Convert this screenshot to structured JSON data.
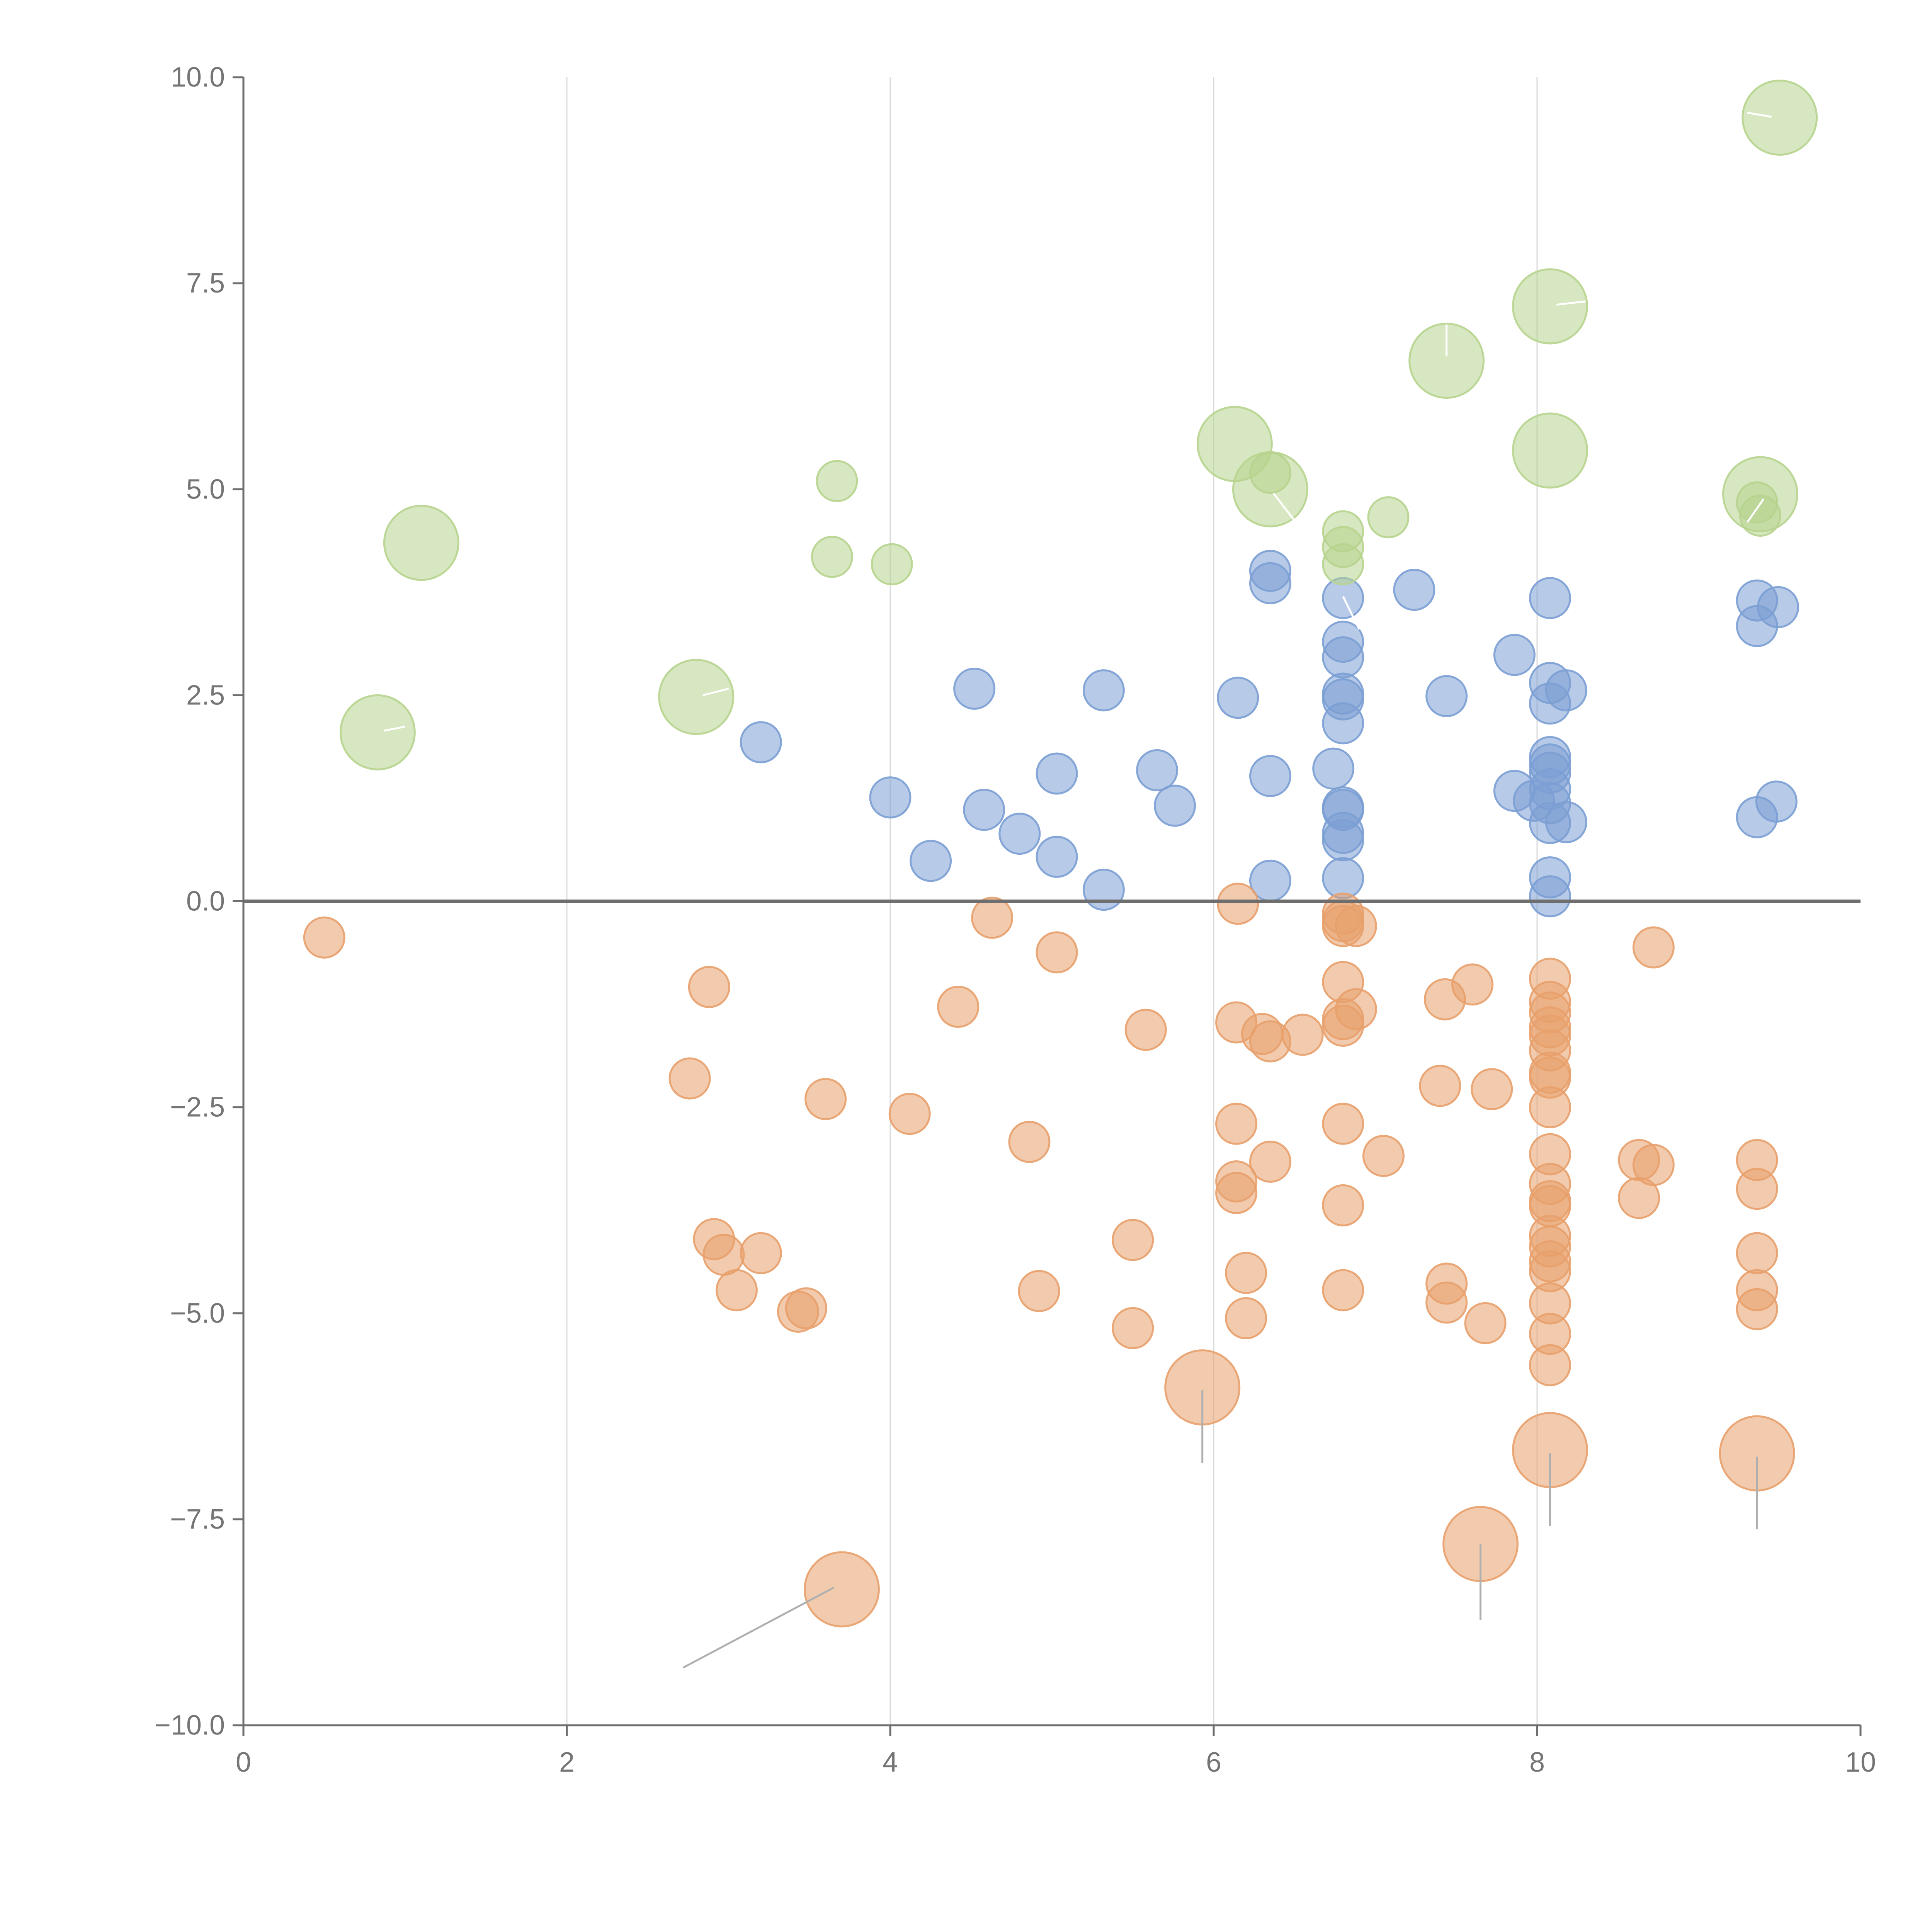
{
  "chart_data": {
    "type": "scatter",
    "title": "",
    "xlabel": "",
    "ylabel": "",
    "xlim": [
      0,
      10
    ],
    "ylim": [
      -10,
      10
    ],
    "xticks": [
      "0",
      "2",
      "4",
      "6",
      "8",
      "10"
    ],
    "xtick_values": [
      0,
      2,
      4,
      6,
      8,
      10
    ],
    "yticks": [
      "10.0",
      "7.5",
      "5.0",
      "2.5",
      "0.0",
      "−2.5",
      "−5.0",
      "−7.5",
      "−10.0"
    ],
    "ytick_values": [
      10,
      7.5,
      5,
      2.5,
      0,
      -2.5,
      -5,
      -7.5,
      -10
    ],
    "vertical_gridlines": [
      2,
      4,
      6,
      8
    ],
    "zero_line": 0,
    "colors": {
      "blue": "#7b9fd4",
      "orange": "#e8a06b",
      "green": "#b7d48e",
      "axis": "#6e6e6e",
      "grid": "#d9d9d9",
      "tick_text": "#757575",
      "leader_line": "#b0b0b0",
      "leader_line_light": "#ffffff"
    },
    "series": [
      {
        "name": "blue",
        "color": "#7b9fd4",
        "size": 1,
        "points": [
          [
            3.2,
            1.93
          ],
          [
            4.0,
            1.26
          ],
          [
            4.25,
            0.49
          ],
          [
            4.52,
            2.58
          ],
          [
            4.58,
            1.11
          ],
          [
            4.8,
            0.82
          ],
          [
            5.03,
            1.55
          ],
          [
            5.03,
            0.54
          ],
          [
            5.32,
            2.56
          ],
          [
            5.32,
            0.14
          ],
          [
            5.65,
            1.59
          ],
          [
            5.76,
            1.16
          ],
          [
            6.15,
            2.47
          ],
          [
            6.35,
            4.01
          ],
          [
            6.35,
            3.86
          ],
          [
            6.35,
            1.52
          ],
          [
            6.35,
            0.25
          ],
          [
            6.8,
            3.68
          ],
          [
            6.8,
            3.15
          ],
          [
            6.8,
            2.96
          ],
          [
            6.8,
            2.52
          ],
          [
            6.8,
            2.45
          ],
          [
            6.8,
            2.16
          ],
          [
            6.74,
            1.61
          ],
          [
            6.8,
            1.14
          ],
          [
            6.8,
            1.11
          ],
          [
            6.8,
            0.83
          ],
          [
            6.8,
            0.74
          ],
          [
            6.8,
            0.28
          ],
          [
            7.24,
            3.78
          ],
          [
            7.44,
            2.49
          ],
          [
            7.86,
            2.99
          ],
          [
            7.86,
            1.34
          ],
          [
            7.98,
            1.22
          ],
          [
            8.08,
            3.68
          ],
          [
            8.08,
            2.65
          ],
          [
            8.08,
            2.4
          ],
          [
            8.18,
            2.56
          ],
          [
            8.08,
            1.75
          ],
          [
            8.08,
            1.66
          ],
          [
            8.08,
            1.56
          ],
          [
            8.08,
            1.36
          ],
          [
            8.08,
            1.19
          ],
          [
            8.08,
            0.95
          ],
          [
            8.18,
            0.96
          ],
          [
            8.08,
            0.29
          ],
          [
            8.08,
            0.06
          ],
          [
            9.36,
            3.65
          ],
          [
            9.49,
            3.57
          ],
          [
            9.36,
            3.34
          ],
          [
            9.48,
            1.21
          ],
          [
            9.36,
            1.02
          ]
        ]
      },
      {
        "name": "orange",
        "color": "#e8a06b",
        "size": 1,
        "points": [
          [
            0.5,
            -0.44
          ],
          [
            2.76,
            -2.15
          ],
          [
            2.88,
            -1.04
          ],
          [
            2.91,
            -4.1
          ],
          [
            2.97,
            -4.29
          ],
          [
            3.05,
            -4.72
          ],
          [
            3.2,
            -4.27
          ],
          [
            3.43,
            -4.98
          ],
          [
            3.48,
            -4.94
          ],
          [
            3.6,
            -2.4
          ],
          [
            4.12,
            -2.58
          ],
          [
            4.42,
            -1.28
          ],
          [
            4.63,
            -0.2
          ],
          [
            4.86,
            -2.92
          ],
          [
            4.92,
            -4.73
          ],
          [
            5.03,
            -0.62
          ],
          [
            5.5,
            -4.11
          ],
          [
            5.5,
            -5.18
          ],
          [
            5.58,
            -1.56
          ],
          [
            6.15,
            -0.03
          ],
          [
            6.14,
            -1.47
          ],
          [
            6.14,
            -2.7
          ],
          [
            6.14,
            -3.4
          ],
          [
            6.14,
            -3.54
          ],
          [
            6.2,
            -4.51
          ],
          [
            6.2,
            -5.06
          ],
          [
            6.3,
            -1.61
          ],
          [
            6.35,
            -1.7
          ],
          [
            6.35,
            -3.16
          ],
          [
            6.55,
            -1.62
          ],
          [
            6.8,
            -0.15
          ],
          [
            6.8,
            -0.24
          ],
          [
            6.8,
            -0.3
          ],
          [
            6.88,
            -0.3
          ],
          [
            6.8,
            -0.98
          ],
          [
            6.88,
            -1.31
          ],
          [
            6.8,
            -1.43
          ],
          [
            6.8,
            -1.51
          ],
          [
            6.8,
            -2.7
          ],
          [
            6.8,
            -3.69
          ],
          [
            6.8,
            -4.72
          ],
          [
            7.05,
            -3.09
          ],
          [
            7.43,
            -1.19
          ],
          [
            7.6,
            -1.01
          ],
          [
            7.4,
            -2.24
          ],
          [
            7.72,
            -2.28
          ],
          [
            7.44,
            -4.64
          ],
          [
            7.44,
            -4.87
          ],
          [
            7.68,
            -5.12
          ],
          [
            8.08,
            -0.94
          ],
          [
            8.08,
            -1.22
          ],
          [
            8.08,
            -1.35
          ],
          [
            8.08,
            -1.53
          ],
          [
            8.08,
            -1.63
          ],
          [
            8.08,
            -1.81
          ],
          [
            8.08,
            -2.08
          ],
          [
            8.08,
            -2.14
          ],
          [
            8.08,
            -2.5
          ],
          [
            8.08,
            -3.07
          ],
          [
            8.08,
            -3.43
          ],
          [
            8.08,
            -3.64
          ],
          [
            8.08,
            -3.7
          ],
          [
            8.08,
            -4.06
          ],
          [
            8.08,
            -4.19
          ],
          [
            8.08,
            -4.37
          ],
          [
            8.08,
            -4.49
          ],
          [
            8.08,
            -4.88
          ],
          [
            8.08,
            -5.25
          ],
          [
            8.08,
            -5.63
          ],
          [
            8.63,
            -3.14
          ],
          [
            8.72,
            -3.2
          ],
          [
            8.63,
            -3.6
          ],
          [
            8.72,
            -0.56
          ],
          [
            9.36,
            -3.14
          ],
          [
            9.36,
            -3.49
          ],
          [
            9.36,
            -4.27
          ],
          [
            9.36,
            -4.72
          ],
          [
            9.36,
            -4.95
          ]
        ]
      },
      {
        "name": "orange-large",
        "color": "#e8a06b",
        "size": 2,
        "points": [
          [
            3.7,
            -8.35
          ],
          [
            5.93,
            -5.9
          ],
          [
            7.65,
            -7.8
          ],
          [
            8.08,
            -6.66
          ],
          [
            9.36,
            -6.7
          ]
        ]
      },
      {
        "name": "green",
        "color": "#b7d48e",
        "size": 1,
        "points": [
          [
            3.64,
            4.18
          ],
          [
            3.67,
            5.1
          ],
          [
            4.01,
            4.09
          ],
          [
            6.35,
            5.2
          ],
          [
            6.8,
            4.49
          ],
          [
            6.8,
            4.3
          ],
          [
            6.8,
            4.09
          ],
          [
            7.08,
            4.66
          ],
          [
            9.36,
            4.84
          ],
          [
            9.38,
            4.68
          ]
        ]
      },
      {
        "name": "green-large",
        "color": "#b7d48e",
        "size": 2,
        "points": [
          [
            0.83,
            2.05
          ],
          [
            1.1,
            4.35
          ],
          [
            2.8,
            2.48
          ],
          [
            6.13,
            5.55
          ],
          [
            6.35,
            5.0
          ],
          [
            7.44,
            6.56
          ],
          [
            8.08,
            7.22
          ],
          [
            8.08,
            5.47
          ],
          [
            9.38,
            4.94
          ],
          [
            9.5,
            9.51
          ]
        ]
      }
    ],
    "leader_lines": [
      {
        "color": "#b0b0b0",
        "from": [
          3.65,
          -8.33
        ],
        "to": [
          2.72,
          -9.3
        ]
      },
      {
        "color": "#b0b0b0",
        "from": [
          5.93,
          -5.93
        ],
        "to": [
          5.93,
          -6.82
        ]
      },
      {
        "color": "#b0b0b0",
        "from": [
          7.65,
          -7.8
        ],
        "to": [
          7.65,
          -8.72
        ]
      },
      {
        "color": "#b0b0b0",
        "from": [
          8.08,
          -6.7
        ],
        "to": [
          8.08,
          -7.58
        ]
      },
      {
        "color": "#b0b0b0",
        "from": [
          9.36,
          -6.74
        ],
        "to": [
          9.36,
          -7.62
        ]
      },
      {
        "color": "#ffffff",
        "from": [
          0.87,
          2.07
        ],
        "to": [
          1.0,
          2.12
        ]
      },
      {
        "color": "#ffffff",
        "from": [
          2.84,
          2.5
        ],
        "to": [
          3.0,
          2.58
        ]
      },
      {
        "color": "#ffffff",
        "from": [
          6.37,
          4.95
        ],
        "to": [
          6.5,
          4.62
        ]
      },
      {
        "color": "#ffffff",
        "from": [
          7.44,
          6.62
        ],
        "to": [
          7.44,
          7.0
        ]
      },
      {
        "color": "#ffffff",
        "from": [
          8.12,
          7.24
        ],
        "to": [
          8.3,
          7.28
        ]
      },
      {
        "color": "#ffffff",
        "from": [
          9.4,
          4.88
        ],
        "to": [
          9.3,
          4.6
        ]
      },
      {
        "color": "#ffffff",
        "from": [
          9.45,
          9.52
        ],
        "to": [
          9.3,
          9.57
        ]
      },
      {
        "color": "#ffffff",
        "from": [
          6.8,
          3.7
        ],
        "to": [
          6.9,
          3.3
        ]
      }
    ]
  }
}
